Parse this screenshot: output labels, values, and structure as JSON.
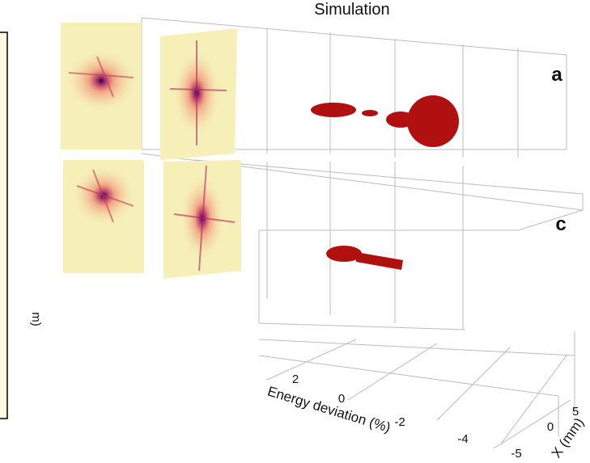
{
  "title": "Simulation",
  "panel_labels": [
    "a",
    "c"
  ],
  "left_axis_label": "m)",
  "energy_axis": {
    "label": "Energy deviation (%)",
    "ticks": [
      "2",
      "0",
      "-2",
      "-4"
    ]
  },
  "x_axis": {
    "label": "X (mm)",
    "ticks": [
      "5",
      "0",
      "-5"
    ]
  }
}
